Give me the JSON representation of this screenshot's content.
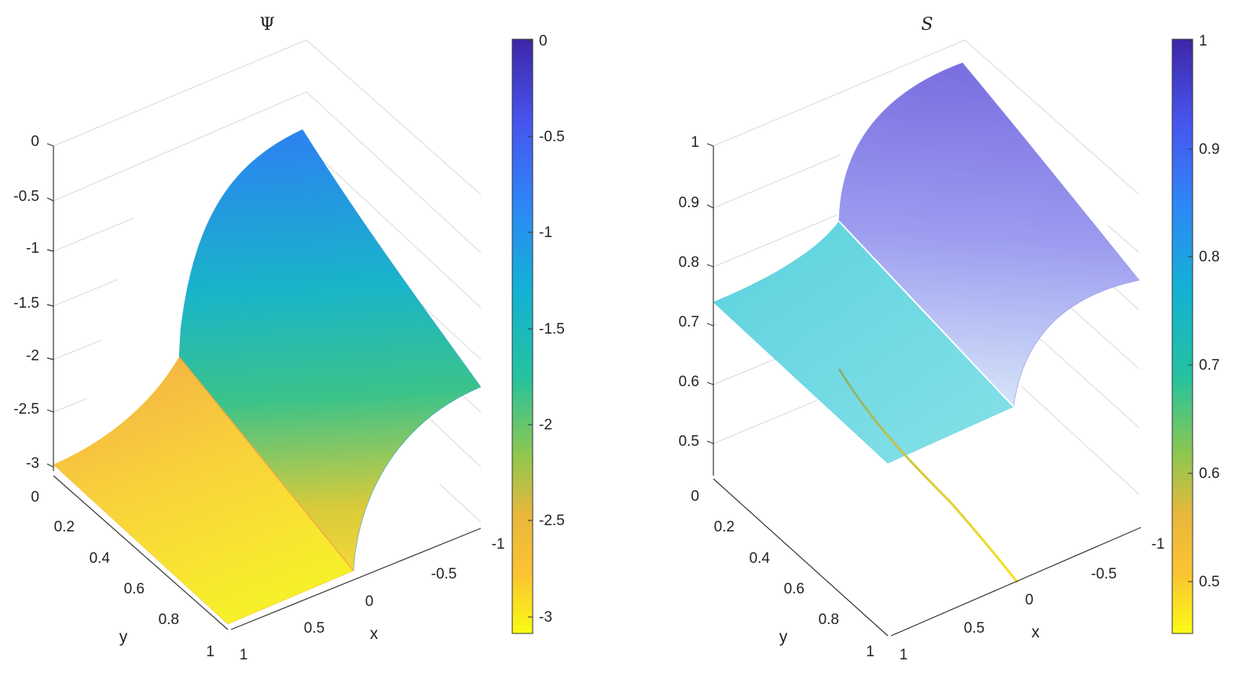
{
  "chart_data": [
    {
      "type": "surface",
      "title": "Ψ",
      "xlabel": "x",
      "ylabel": "y",
      "zlabel": "",
      "x_ticks": [
        "-1",
        "-0.5",
        "0",
        "0.5",
        "1"
      ],
      "y_ticks": [
        "0",
        "0.2",
        "0.4",
        "0.6",
        "0.8",
        "1"
      ],
      "z_ticks": [
        "0",
        "-0.5",
        "-1",
        "-1.5",
        "-2",
        "-2.5",
        "-3"
      ],
      "colorbar_ticks": [
        "0",
        "-0.5",
        "-1",
        "-1.5",
        "-2",
        "-2.5",
        "-3"
      ],
      "xlim": [
        -1,
        1
      ],
      "ylim": [
        0,
        1
      ],
      "zlim": [
        -3,
        0
      ],
      "clim": [
        -3.1,
        0
      ],
      "colormap": "parula-reversed",
      "grid": true,
      "surface_samples": [
        {
          "x": 1,
          "y": 0,
          "z": -2.85
        },
        {
          "x": 0,
          "y": 0,
          "z": -2.0
        },
        {
          "x": 0,
          "y": 0,
          "z": -0.05
        },
        {
          "x": -1,
          "y": 0,
          "z": -2.35
        },
        {
          "x": 1,
          "y": 1,
          "z": -3.0
        },
        {
          "x": 0,
          "y": 1,
          "z": -3.0
        }
      ]
    },
    {
      "type": "surface",
      "title": "S",
      "xlabel": "x",
      "ylabel": "y",
      "zlabel": "",
      "x_ticks": [
        "-1",
        "-0.5",
        "0",
        "0.5",
        "1"
      ],
      "y_ticks": [
        "0",
        "0.2",
        "0.4",
        "0.6",
        "0.8",
        "1"
      ],
      "z_ticks": [
        "1",
        "0.9",
        "0.8",
        "0.7",
        "0.6",
        "0.5"
      ],
      "colorbar_ticks": [
        "1",
        "0.9",
        "0.8",
        "0.7",
        "0.6",
        "0.5"
      ],
      "xlim": [
        -1,
        1
      ],
      "ylim": [
        0,
        1
      ],
      "zlim": [
        0.45,
        1
      ],
      "clim": [
        0.45,
        1
      ],
      "colormap": "parula-reversed",
      "grid": true,
      "surface_samples": [
        {
          "x": 1,
          "y": 0,
          "z": 0.74
        },
        {
          "x": 0,
          "y": 0,
          "z": 0.76
        },
        {
          "x": 0,
          "y": 0,
          "z": 0.97
        },
        {
          "x": -1,
          "y": 0,
          "z": 0.85
        },
        {
          "x": 1,
          "y": 1,
          "z": 0.74
        },
        {
          "x": 0,
          "y": 1,
          "z": 0.74
        }
      ],
      "interface_curve": [
        {
          "x": 0,
          "y": 1,
          "z": 0.45
        },
        {
          "x": 0.25,
          "y": 0.65,
          "z": 0.52
        },
        {
          "x": 0.5,
          "y": 0.3,
          "z": 0.62
        }
      ]
    }
  ]
}
